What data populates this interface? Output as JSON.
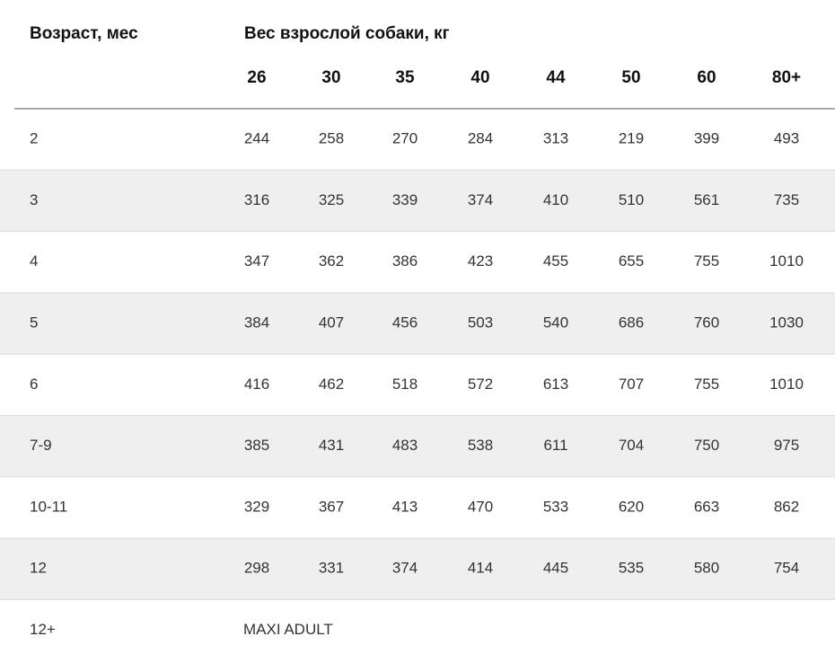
{
  "header": {
    "age_label": "Возраст, мес",
    "weight_label": "Вес взрослой собаки, кг",
    "weights": [
      "26",
      "30",
      "35",
      "40",
      "44",
      "50",
      "60",
      "80+"
    ]
  },
  "table": {
    "rows": [
      {
        "age": "2",
        "values": [
          244,
          258,
          270,
          284,
          313,
          219,
          399,
          493
        ]
      },
      {
        "age": "3",
        "values": [
          316,
          325,
          339,
          374,
          410,
          510,
          561,
          735
        ]
      },
      {
        "age": "4",
        "values": [
          347,
          362,
          386,
          423,
          455,
          655,
          755,
          1010
        ]
      },
      {
        "age": "5",
        "values": [
          384,
          407,
          456,
          503,
          540,
          686,
          760,
          1030
        ]
      },
      {
        "age": "6",
        "values": [
          416,
          462,
          518,
          572,
          613,
          707,
          755,
          1010
        ]
      },
      {
        "age": "7-9",
        "values": [
          385,
          431,
          483,
          538,
          611,
          704,
          750,
          975
        ]
      },
      {
        "age": "10-11",
        "values": [
          329,
          367,
          413,
          470,
          533,
          620,
          663,
          862
        ]
      },
      {
        "age": "12",
        "values": [
          298,
          331,
          374,
          414,
          445,
          535,
          580,
          754
        ]
      },
      {
        "age": "12+",
        "note": "MAXI ADULT"
      }
    ]
  }
}
